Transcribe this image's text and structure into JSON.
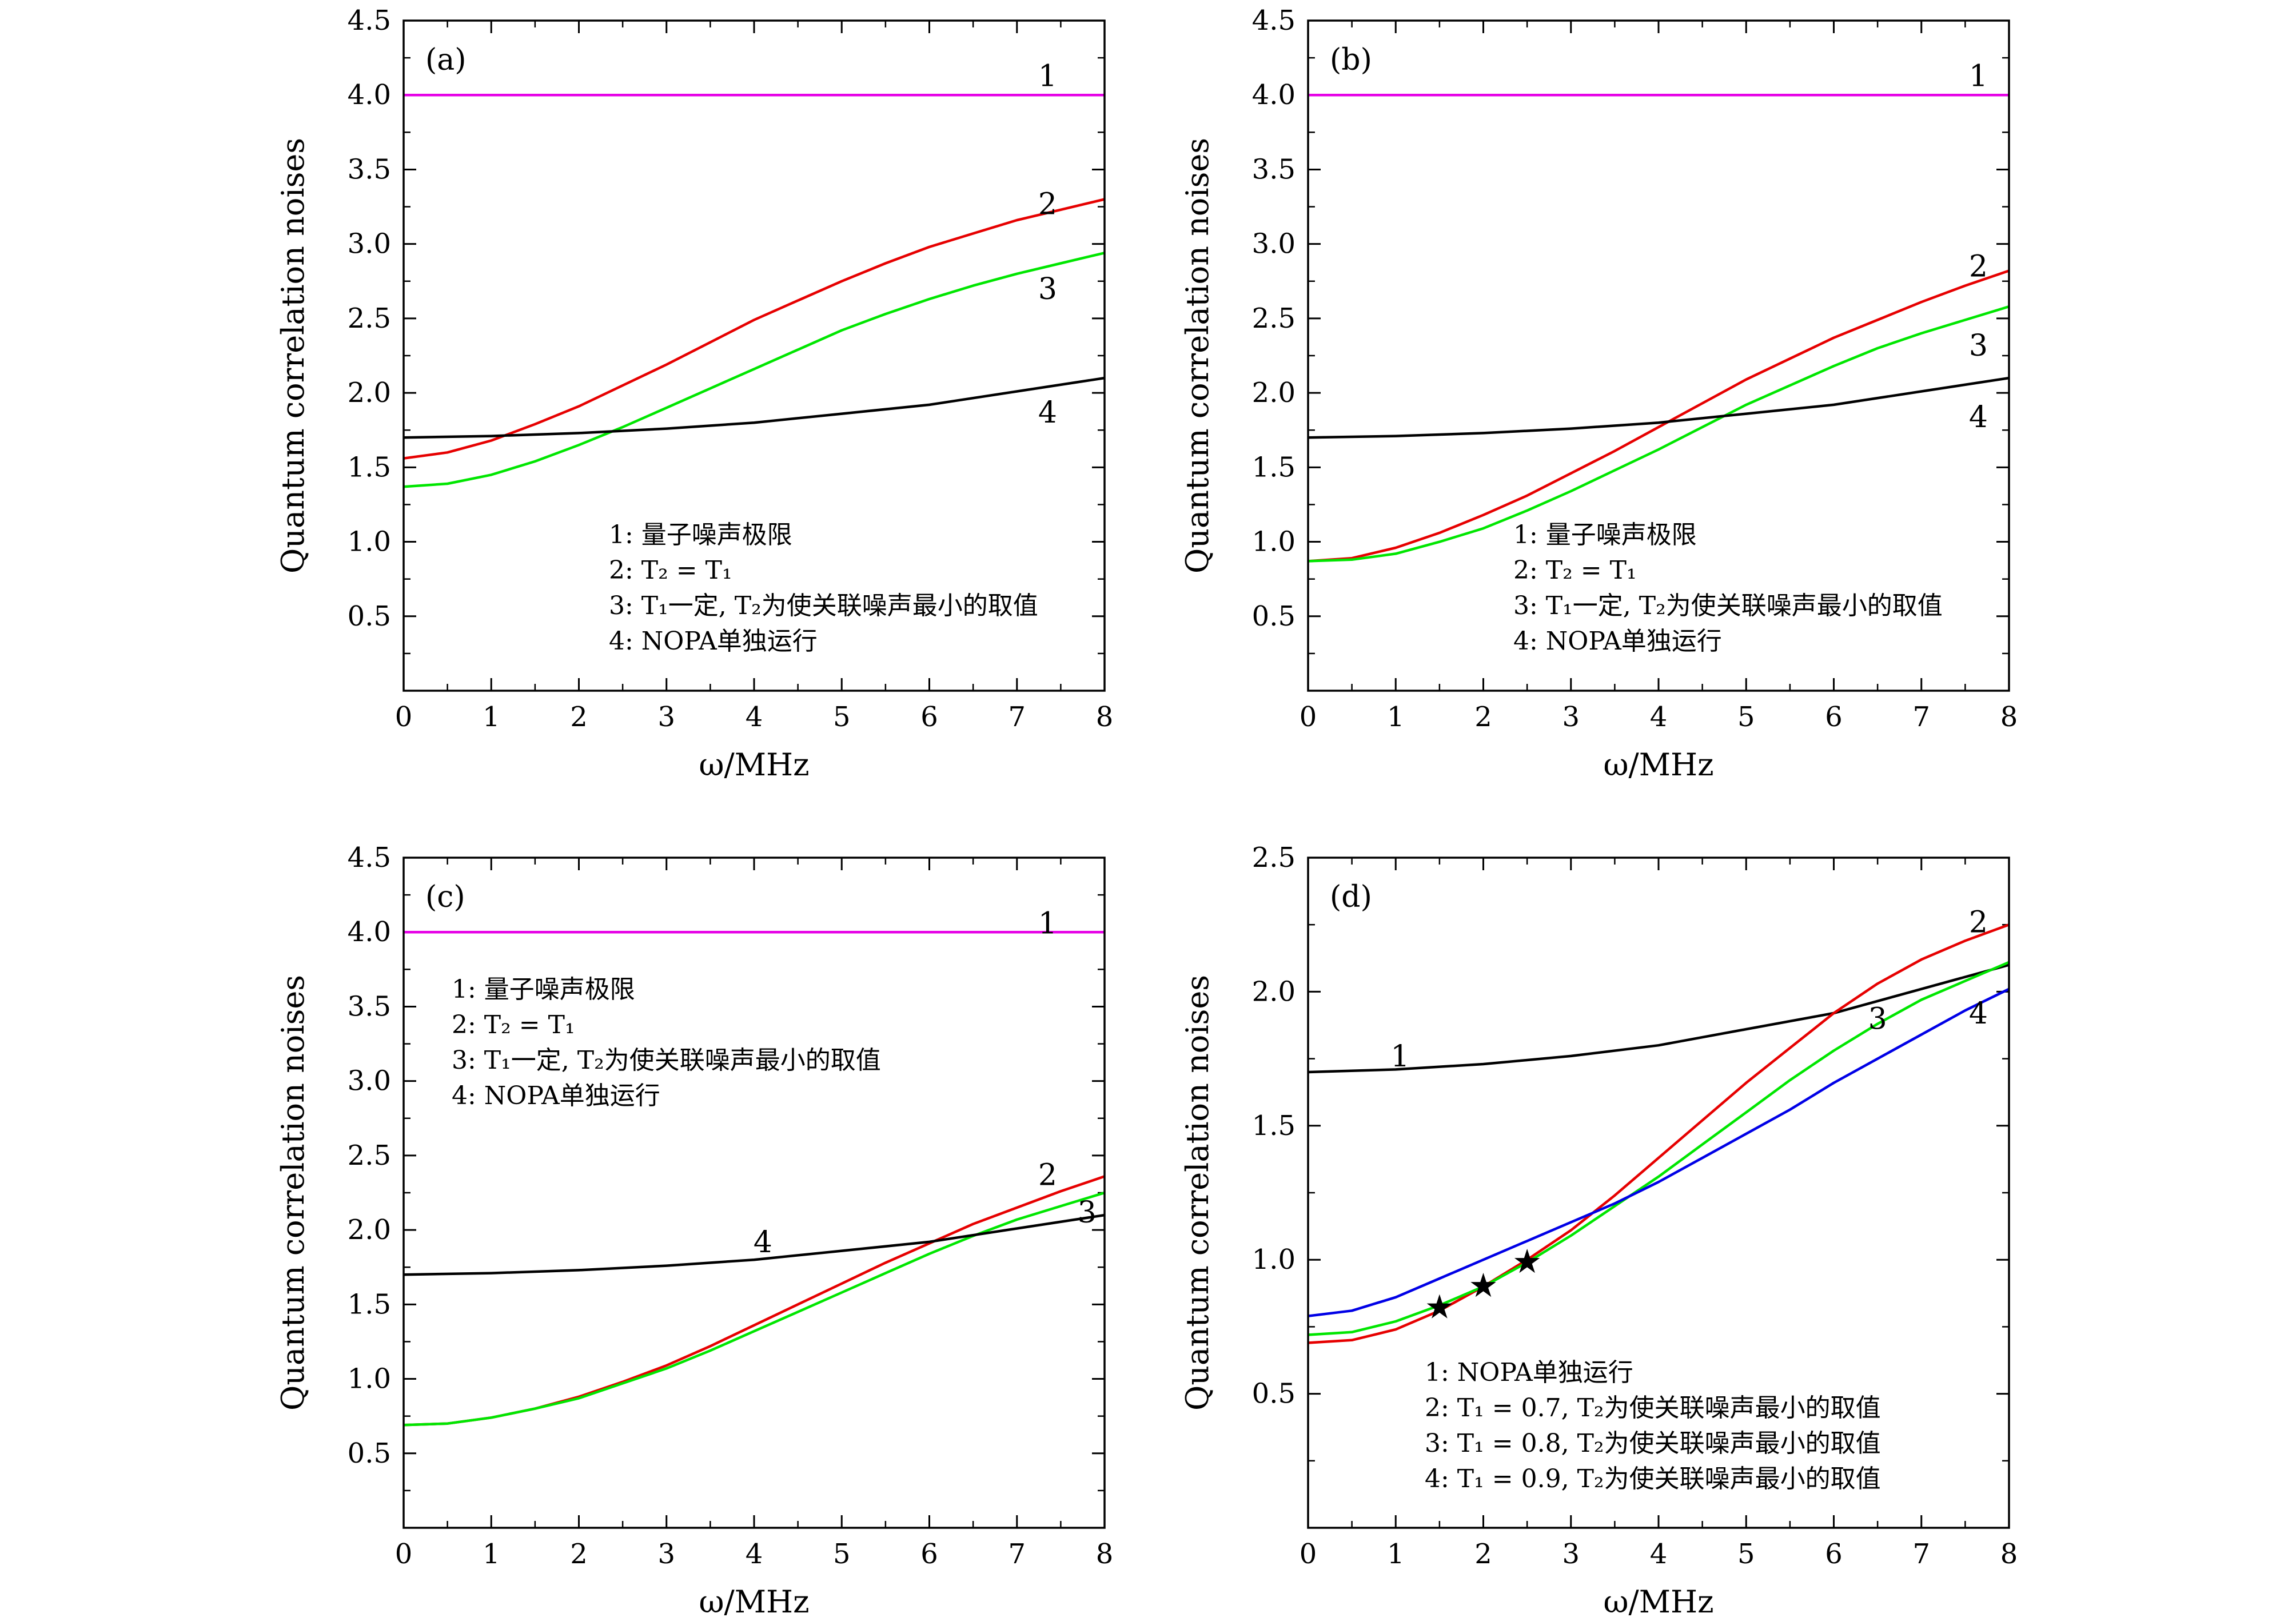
{
  "chart_data": [
    {
      "panel": "(a)",
      "type": "line",
      "xlabel": "ω/MHz",
      "ylabel": "Quantum correlation noises",
      "xlim": [
        0,
        8
      ],
      "ylim": [
        0,
        4.5
      ],
      "xticks": [
        "0",
        "1",
        "2",
        "3",
        "4",
        "5",
        "6",
        "7",
        "8"
      ],
      "yticks": [
        "0.5",
        "1.0",
        "1.5",
        "2.0",
        "2.5",
        "3.0",
        "3.5",
        "4.0",
        "4.5"
      ],
      "series": [
        {
          "name": "1",
          "color": "#e600e6",
          "x": [
            0,
            1,
            2,
            3,
            4,
            5,
            6,
            7,
            8
          ],
          "y": [
            4.0,
            4.0,
            4.0,
            4.0,
            4.0,
            4.0,
            4.0,
            4.0,
            4.0
          ]
        },
        {
          "name": "2",
          "color": "#e60000",
          "x": [
            0,
            0.5,
            1,
            1.5,
            2,
            2.5,
            3,
            3.5,
            4,
            4.5,
            5,
            5.5,
            6,
            6.5,
            7,
            7.5,
            8
          ],
          "y": [
            1.56,
            1.6,
            1.68,
            1.79,
            1.91,
            2.05,
            2.19,
            2.34,
            2.49,
            2.62,
            2.75,
            2.87,
            2.98,
            3.07,
            3.16,
            3.23,
            3.3
          ]
        },
        {
          "name": "3",
          "color": "#00e600",
          "x": [
            0,
            0.5,
            1,
            1.5,
            2,
            2.5,
            3,
            3.5,
            4,
            4.5,
            5,
            5.5,
            6,
            6.5,
            7,
            7.5,
            8
          ],
          "y": [
            1.37,
            1.39,
            1.45,
            1.54,
            1.65,
            1.77,
            1.9,
            2.03,
            2.16,
            2.29,
            2.42,
            2.53,
            2.63,
            2.72,
            2.8,
            2.87,
            2.94
          ]
        },
        {
          "name": "4",
          "color": "#000000",
          "x": [
            0,
            1,
            2,
            3,
            4,
            5,
            6,
            7,
            8
          ],
          "y": [
            1.7,
            1.71,
            1.73,
            1.76,
            1.8,
            1.86,
            1.92,
            2.01,
            2.1
          ]
        }
      ],
      "curve_labels": [
        {
          "text": "1",
          "x": 7.35,
          "y": 4.13
        },
        {
          "text": "2",
          "x": 7.35,
          "y": 3.27
        },
        {
          "text": "3",
          "x": 7.35,
          "y": 2.7
        },
        {
          "text": "4",
          "x": 7.35,
          "y": 1.87
        }
      ],
      "legend": [
        "1: 量子噪声极限",
        "2: T₂ = T₁",
        "3: T₁一定, T₂为使关联噪声最小的取值",
        "4: NOPA单独运行"
      ],
      "legend_placement": "bottom-right"
    },
    {
      "panel": "(b)",
      "type": "line",
      "xlabel": "ω/MHz",
      "ylabel": "Quantum correlation noises",
      "xlim": [
        0,
        8
      ],
      "ylim": [
        0,
        4.5
      ],
      "xticks": [
        "0",
        "1",
        "2",
        "3",
        "4",
        "5",
        "6",
        "7",
        "8"
      ],
      "yticks": [
        "0.5",
        "1.0",
        "1.5",
        "2.0",
        "2.5",
        "3.0",
        "3.5",
        "4.0",
        "4.5"
      ],
      "series": [
        {
          "name": "1",
          "color": "#e600e6",
          "x": [
            0,
            1,
            2,
            3,
            4,
            5,
            6,
            7,
            8
          ],
          "y": [
            4.0,
            4.0,
            4.0,
            4.0,
            4.0,
            4.0,
            4.0,
            4.0,
            4.0
          ]
        },
        {
          "name": "2",
          "color": "#e60000",
          "x": [
            0,
            0.5,
            1,
            1.5,
            2,
            2.5,
            3,
            3.5,
            4,
            4.5,
            5,
            5.5,
            6,
            6.5,
            7,
            7.5,
            8
          ],
          "y": [
            0.87,
            0.89,
            0.96,
            1.06,
            1.18,
            1.31,
            1.46,
            1.61,
            1.77,
            1.93,
            2.09,
            2.23,
            2.37,
            2.49,
            2.61,
            2.72,
            2.82
          ]
        },
        {
          "name": "3",
          "color": "#00e600",
          "x": [
            0,
            0.5,
            1,
            1.5,
            2,
            2.5,
            3,
            3.5,
            4,
            4.5,
            5,
            5.5,
            6,
            6.5,
            7,
            7.5,
            8
          ],
          "y": [
            0.87,
            0.88,
            0.92,
            1.0,
            1.09,
            1.21,
            1.34,
            1.48,
            1.62,
            1.77,
            1.92,
            2.05,
            2.18,
            2.3,
            2.4,
            2.49,
            2.58
          ]
        },
        {
          "name": "4",
          "color": "#000000",
          "x": [
            0,
            1,
            2,
            3,
            4,
            5,
            6,
            7,
            8
          ],
          "y": [
            1.7,
            1.71,
            1.73,
            1.76,
            1.8,
            1.86,
            1.92,
            2.01,
            2.1
          ]
        }
      ],
      "curve_labels": [
        {
          "text": "1",
          "x": 7.65,
          "y": 4.13
        },
        {
          "text": "2",
          "x": 7.65,
          "y": 2.85
        },
        {
          "text": "3",
          "x": 7.65,
          "y": 2.32
        },
        {
          "text": "4",
          "x": 7.65,
          "y": 1.84
        }
      ],
      "legend": [
        "1: 量子噪声极限",
        "2: T₂ = T₁",
        "3: T₁一定, T₂为使关联噪声最小的取值",
        "4: NOPA单独运行"
      ],
      "legend_placement": "bottom-right"
    },
    {
      "panel": "(c)",
      "type": "line",
      "xlabel": "ω/MHz",
      "ylabel": "Quantum correlation noises",
      "xlim": [
        0,
        8
      ],
      "ylim": [
        0,
        4.5
      ],
      "xticks": [
        "0",
        "1",
        "2",
        "3",
        "4",
        "5",
        "6",
        "7",
        "8"
      ],
      "yticks": [
        "0.5",
        "1.0",
        "1.5",
        "2.0",
        "2.5",
        "3.0",
        "3.5",
        "4.0",
        "4.5"
      ],
      "series": [
        {
          "name": "1",
          "color": "#e600e6",
          "x": [
            0,
            1,
            2,
            3,
            4,
            5,
            6,
            7,
            8
          ],
          "y": [
            4.0,
            4.0,
            4.0,
            4.0,
            4.0,
            4.0,
            4.0,
            4.0,
            4.0
          ]
        },
        {
          "name": "2",
          "color": "#e60000",
          "x": [
            0,
            0.5,
            1,
            1.5,
            2,
            2.5,
            3,
            3.5,
            4,
            4.5,
            5,
            5.5,
            6,
            6.5,
            7,
            7.5,
            8
          ],
          "y": [
            0.69,
            0.7,
            0.74,
            0.8,
            0.88,
            0.98,
            1.09,
            1.22,
            1.36,
            1.5,
            1.64,
            1.78,
            1.91,
            2.04,
            2.15,
            2.26,
            2.36
          ]
        },
        {
          "name": "3",
          "color": "#00e600",
          "x": [
            0,
            0.5,
            1,
            1.5,
            2,
            2.5,
            3,
            3.5,
            4,
            4.5,
            5,
            5.5,
            6,
            6.5,
            7,
            7.5,
            8
          ],
          "y": [
            0.69,
            0.7,
            0.74,
            0.8,
            0.87,
            0.97,
            1.07,
            1.19,
            1.32,
            1.45,
            1.58,
            1.71,
            1.84,
            1.96,
            2.07,
            2.16,
            2.25
          ]
        },
        {
          "name": "4",
          "color": "#000000",
          "x": [
            0,
            1,
            2,
            3,
            4,
            5,
            6,
            7,
            8
          ],
          "y": [
            1.7,
            1.71,
            1.73,
            1.76,
            1.8,
            1.86,
            1.92,
            2.01,
            2.1
          ]
        }
      ],
      "curve_labels": [
        {
          "text": "1",
          "x": 7.35,
          "y": 4.06
        },
        {
          "text": "2",
          "x": 7.35,
          "y": 2.37
        },
        {
          "text": "3",
          "x": 7.8,
          "y": 2.12
        },
        {
          "text": "4",
          "x": 4.1,
          "y": 1.92
        }
      ],
      "legend": [
        "1: 量子噪声极限",
        "2: T₂ = T₁",
        "3: T₁一定, T₂为使关联噪声最小的取值",
        "4: NOPA单独运行"
      ],
      "legend_placement": "top-left"
    },
    {
      "panel": "(d)",
      "type": "line",
      "xlabel": "ω/MHz",
      "ylabel": "Quantum correlation noises",
      "xlim": [
        0,
        8
      ],
      "ylim": [
        0,
        2.5
      ],
      "xticks": [
        "0",
        "1",
        "2",
        "3",
        "4",
        "5",
        "6",
        "7",
        "8"
      ],
      "yticks": [
        "0.5",
        "1.0",
        "1.5",
        "2.0",
        "2.5"
      ],
      "series": [
        {
          "name": "1",
          "color": "#000000",
          "x": [
            0,
            1,
            2,
            3,
            4,
            5,
            6,
            7,
            8
          ],
          "y": [
            1.7,
            1.71,
            1.73,
            1.76,
            1.8,
            1.86,
            1.92,
            2.01,
            2.1
          ]
        },
        {
          "name": "2",
          "color": "#e60000",
          "x": [
            0,
            0.5,
            1,
            1.5,
            2,
            2.5,
            3,
            3.5,
            4,
            4.5,
            5,
            5.5,
            6,
            6.5,
            7,
            7.5,
            8
          ],
          "y": [
            0.69,
            0.7,
            0.74,
            0.81,
            0.9,
            1.0,
            1.11,
            1.24,
            1.38,
            1.52,
            1.66,
            1.79,
            1.92,
            2.03,
            2.12,
            2.19,
            2.25
          ]
        },
        {
          "name": "3",
          "color": "#00e600",
          "x": [
            0,
            0.5,
            1,
            1.5,
            2,
            2.5,
            3,
            3.5,
            4,
            4.5,
            5,
            5.5,
            6,
            6.5,
            7,
            7.5,
            8
          ],
          "y": [
            0.72,
            0.73,
            0.77,
            0.83,
            0.9,
            0.99,
            1.09,
            1.2,
            1.31,
            1.43,
            1.55,
            1.67,
            1.78,
            1.88,
            1.97,
            2.04,
            2.11
          ]
        },
        {
          "name": "4",
          "color": "#0000e6",
          "x": [
            0,
            0.5,
            1,
            1.5,
            2,
            2.5,
            3,
            3.5,
            4,
            4.5,
            5,
            5.5,
            6,
            6.5,
            7,
            7.5,
            8
          ],
          "y": [
            0.79,
            0.81,
            0.86,
            0.93,
            1.0,
            1.07,
            1.14,
            1.21,
            1.29,
            1.38,
            1.47,
            1.56,
            1.66,
            1.75,
            1.84,
            1.93,
            2.01
          ]
        }
      ],
      "markers": {
        "symbol": "★",
        "points": [
          {
            "x": 1.5,
            "y": 0.82
          },
          {
            "x": 2.0,
            "y": 0.9
          },
          {
            "x": 2.5,
            "y": 0.99
          }
        ]
      },
      "curve_labels": [
        {
          "text": "1",
          "x": 1.05,
          "y": 1.76
        },
        {
          "text": "2",
          "x": 7.65,
          "y": 2.26
        },
        {
          "text": "3",
          "x": 6.5,
          "y": 1.9
        },
        {
          "text": "4",
          "x": 7.65,
          "y": 1.92
        }
      ],
      "legend": [
        "1: NOPA单独运行",
        "2: T₁ = 0.7, T₂为使关联噪声最小的取值",
        "3: T₁ = 0.8, T₂为使关联噪声最小的取值",
        "4: T₁ = 0.9, T₂为使关联噪声最小的取值"
      ],
      "legend_placement": "bottom-right"
    }
  ]
}
